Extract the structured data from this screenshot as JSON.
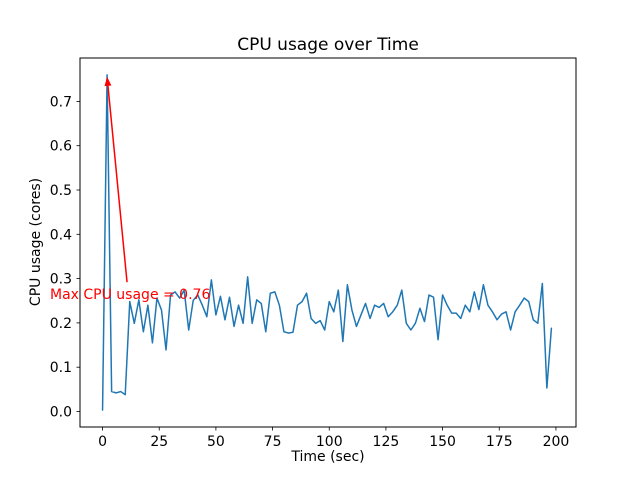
{
  "figure": {
    "title": "CPU usage over Time",
    "xlabel": "Time (sec)",
    "ylabel": "CPU usage (cores)",
    "background_color": "#ffffff",
    "annotation_text": "Max CPU usage = 0.76"
  },
  "chart_data": {
    "type": "line",
    "title": "CPU usage over Time",
    "xlabel": "Time (sec)",
    "ylabel": "CPU usage (cores)",
    "series_name": "CPU usage",
    "series_color": "#1f77b4",
    "line_width": 1.5,
    "grid": false,
    "legend": null,
    "xlim": [
      -9.95,
      208.85
    ],
    "ylim": [
      -0.035,
      0.798
    ],
    "xticks": [
      0,
      25,
      50,
      75,
      100,
      125,
      150,
      175,
      200
    ],
    "yticks": [
      0.0,
      0.1,
      0.2,
      0.3,
      0.4,
      0.5,
      0.6,
      0.7
    ],
    "ytick_labels": [
      "0.0",
      "0.1",
      "0.2",
      "0.3",
      "0.4",
      "0.5",
      "0.6",
      "0.7"
    ],
    "x": [
      0,
      2,
      4,
      6,
      8,
      10,
      12,
      14,
      16,
      18,
      20,
      22,
      24,
      26,
      28,
      30,
      32,
      34,
      36,
      38,
      40,
      42,
      44,
      46,
      48,
      50,
      52,
      54,
      56,
      58,
      60,
      62,
      64,
      66,
      68,
      70,
      72,
      74,
      76,
      78,
      80,
      82,
      84,
      86,
      88,
      90,
      92,
      94,
      96,
      98,
      100,
      102,
      104,
      106,
      108,
      110,
      112,
      114,
      116,
      118,
      120,
      122,
      124,
      126,
      128,
      130,
      132,
      134,
      136,
      138,
      140,
      142,
      144,
      146,
      148,
      150,
      152,
      154,
      156,
      158,
      160,
      162,
      164,
      166,
      168,
      170,
      172,
      174,
      176,
      178,
      180,
      182,
      184,
      186,
      188,
      190,
      192,
      194,
      196,
      198
    ],
    "y": [
      0.003,
      0.76,
      0.045,
      0.042,
      0.045,
      0.038,
      0.248,
      0.199,
      0.252,
      0.18,
      0.24,
      0.155,
      0.256,
      0.229,
      0.139,
      0.263,
      0.27,
      0.256,
      0.274,
      0.184,
      0.251,
      0.263,
      0.24,
      0.214,
      0.297,
      0.218,
      0.26,
      0.207,
      0.258,
      0.192,
      0.24,
      0.199,
      0.304,
      0.199,
      0.252,
      0.244,
      0.18,
      0.267,
      0.27,
      0.24,
      0.18,
      0.177,
      0.179,
      0.24,
      0.248,
      0.267,
      0.21,
      0.199,
      0.205,
      0.184,
      0.248,
      0.225,
      0.274,
      0.158,
      0.286,
      0.229,
      0.192,
      0.218,
      0.244,
      0.21,
      0.24,
      0.235,
      0.244,
      0.214,
      0.225,
      0.24,
      0.274,
      0.199,
      0.184,
      0.199,
      0.233,
      0.203,
      0.263,
      0.258,
      0.162,
      0.263,
      0.24,
      0.222,
      0.222,
      0.21,
      0.24,
      0.225,
      0.27,
      0.23,
      0.286,
      0.24,
      0.225,
      0.207,
      0.22,
      0.225,
      0.184,
      0.225,
      0.24,
      0.256,
      0.248,
      0.207,
      0.199,
      0.289,
      0.053,
      0.188
    ],
    "annotation": {
      "text": "Max CPU usage = 0.76",
      "color": "#ff0000",
      "xy": [
        2,
        0.76
      ],
      "arrow_tail": [
        10.8,
        0.292
      ],
      "text_pos": [
        -23.2,
        0.252
      ]
    }
  }
}
